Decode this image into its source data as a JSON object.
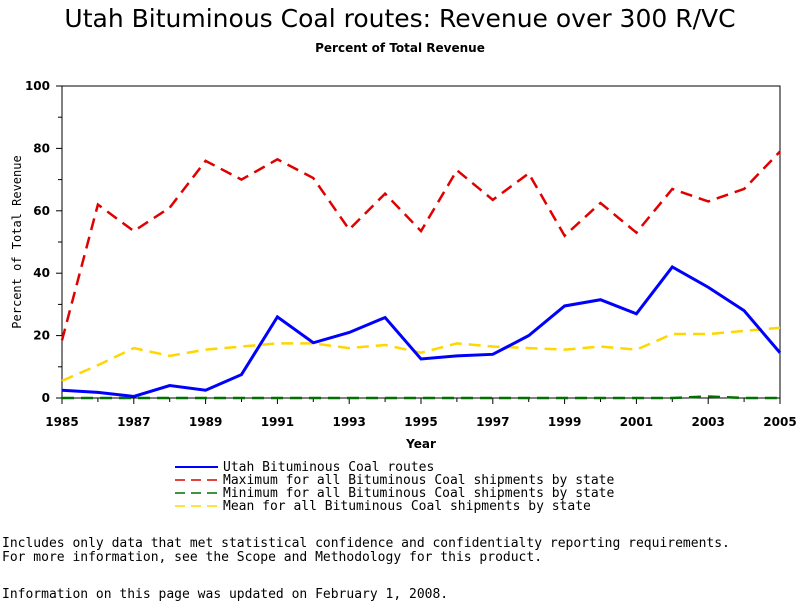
{
  "chart_data": {
    "type": "line",
    "title": "Utah Bituminous Coal routes: Revenue over 300 R/VC",
    "subtitle": "Percent of Total Revenue",
    "xlabel": "Year",
    "ylabel": "Percent of Total Revenue",
    "xlim": [
      1985,
      2005
    ],
    "ylim": [
      0,
      100
    ],
    "x_ticks": [
      "1985",
      "1987",
      "1989",
      "1991",
      "1993",
      "1995",
      "1997",
      "1999",
      "2001",
      "2003",
      "2005"
    ],
    "y_ticks": [
      "0",
      "20",
      "40",
      "60",
      "80",
      "100"
    ],
    "grid": false,
    "legend_position": "bottom",
    "x": [
      1985,
      1986,
      1987,
      1988,
      1989,
      1990,
      1991,
      1992,
      1993,
      1994,
      1995,
      1996,
      1997,
      1998,
      1999,
      2000,
      2001,
      2002,
      2003,
      2004,
      2005
    ],
    "series": [
      {
        "name": "Utah Bituminous Coal routes",
        "color": "#0000ff",
        "style": "solid",
        "values": [
          2.5,
          1.8,
          0.5,
          4.0,
          2.5,
          7.5,
          26.0,
          17.7,
          21.0,
          25.8,
          12.5,
          13.5,
          14.0,
          20.0,
          29.5,
          31.5,
          27.0,
          42.0,
          35.5,
          28.0,
          14.5
        ]
      },
      {
        "name": "Maximum for all Bituminous Coal shipments by state",
        "color": "#e00000",
        "style": "dashed",
        "values": [
          18.5,
          62.0,
          53.5,
          61.0,
          76.0,
          70.0,
          76.5,
          70.5,
          54.0,
          65.5,
          53.5,
          73.0,
          63.5,
          72.0,
          52.0,
          62.5,
          53.0,
          67.0,
          63.0,
          67.0,
          79.0
        ]
      },
      {
        "name": "Minimum for all Bituminous Coal shipments by state",
        "color": "#007000",
        "style": "dashed",
        "values": [
          0,
          0,
          0,
          0,
          0,
          0,
          0,
          0,
          0,
          0,
          0,
          0,
          0,
          0,
          0,
          0,
          0,
          0,
          0.5,
          0,
          0
        ]
      },
      {
        "name": "Mean for all Bituminous Coal shipments by state",
        "color": "#ffd700",
        "style": "dashed",
        "values": [
          5.5,
          10.5,
          16.0,
          13.5,
          15.5,
          16.5,
          17.5,
          17.5,
          16.0,
          17.0,
          14.5,
          17.5,
          16.5,
          16.0,
          15.5,
          16.5,
          15.5,
          20.5,
          20.5,
          21.5,
          22.5
        ]
      }
    ]
  },
  "footnotes": {
    "line1": "Includes only data that met statistical confidence and confidentialty reporting requirements.",
    "line2": "For more information, see the Scope and Methodology for this product.",
    "line3": "Information on this page was updated on February 1, 2008."
  }
}
